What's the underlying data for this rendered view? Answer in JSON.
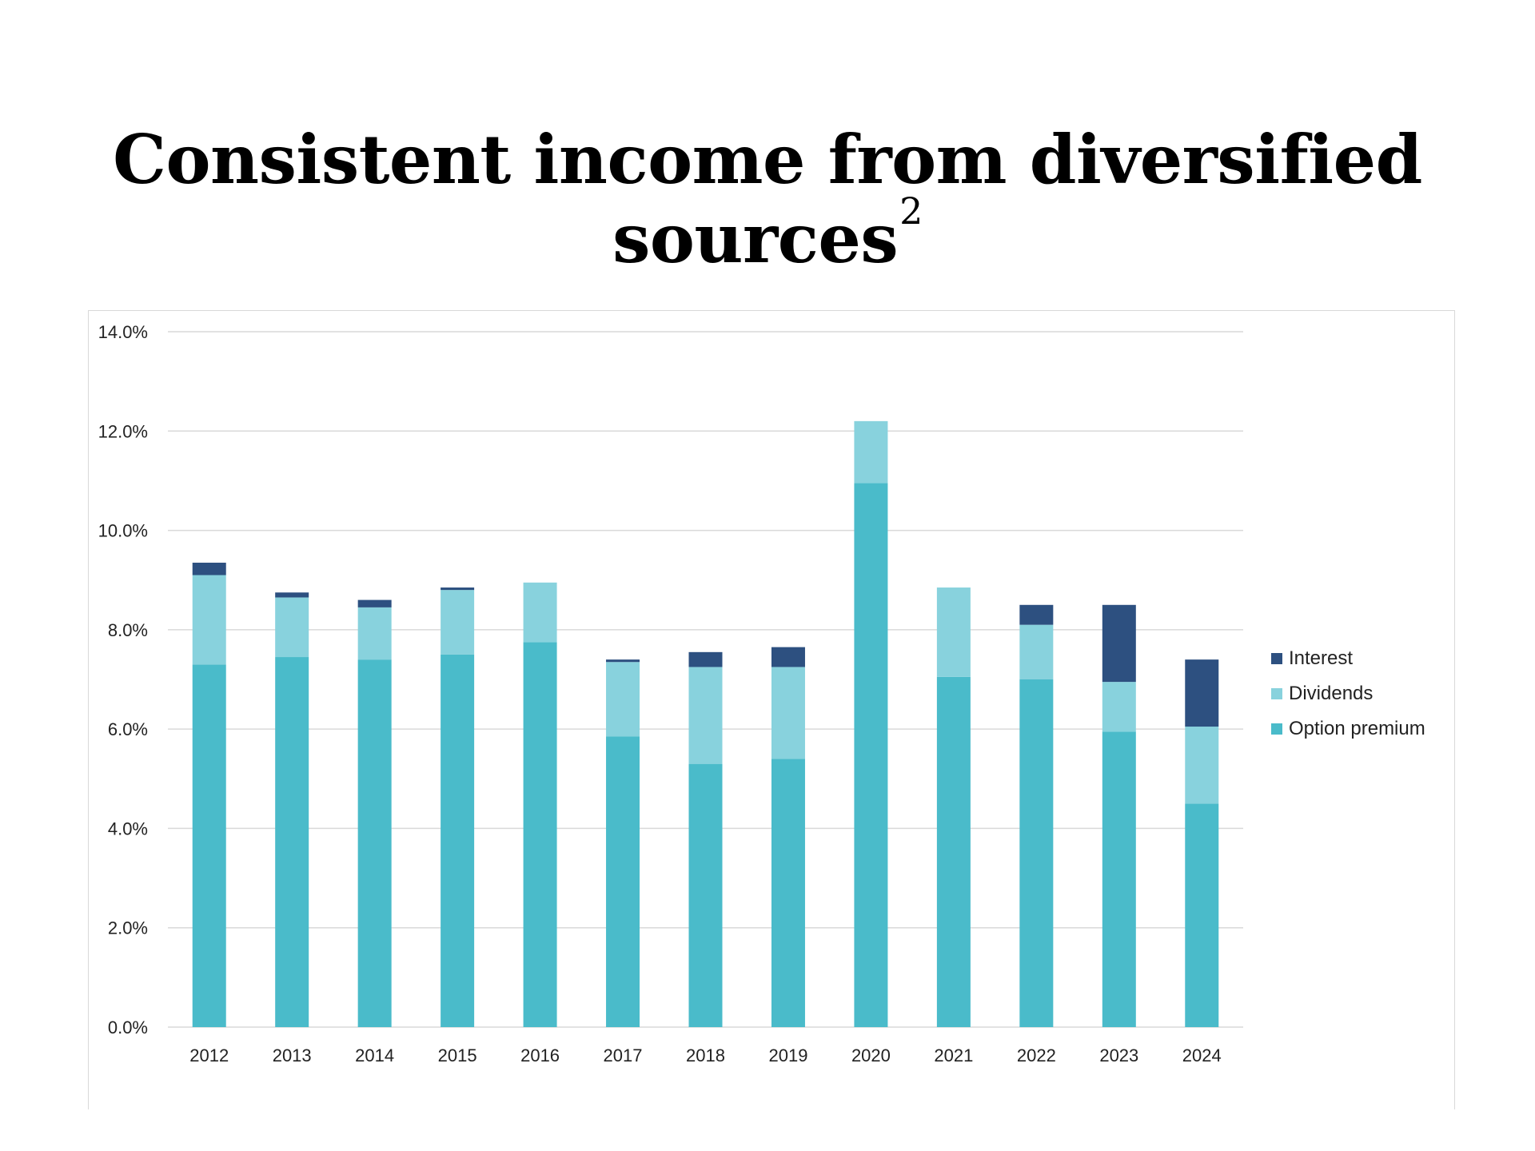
{
  "title": "Consistent income from diversified sources",
  "title_superscript": "2",
  "colors": {
    "interest": "#2d5080",
    "dividends": "#88d2dd",
    "option_premium": "#4abbca",
    "grid": "#d9d9d9"
  },
  "chart_data": {
    "type": "bar",
    "stacked": true,
    "categories": [
      "2012",
      "2013",
      "2014",
      "2015",
      "2016",
      "2017",
      "2018",
      "2019",
      "2020",
      "2021",
      "2022",
      "2023",
      "2024"
    ],
    "series": [
      {
        "name": "Option premium",
        "values": [
          7.3,
          7.45,
          7.4,
          7.5,
          7.75,
          5.85,
          5.3,
          5.4,
          10.95,
          7.05,
          7.0,
          5.95,
          4.5
        ]
      },
      {
        "name": "Dividends",
        "values": [
          1.8,
          1.2,
          1.05,
          1.3,
          1.2,
          1.5,
          1.95,
          1.85,
          1.25,
          1.8,
          1.1,
          1.0,
          1.55
        ]
      },
      {
        "name": "Interest",
        "values": [
          0.25,
          0.1,
          0.15,
          0.05,
          0.0,
          0.05,
          0.3,
          0.4,
          0.0,
          0.0,
          0.4,
          1.55,
          1.35
        ]
      }
    ],
    "ylim": [
      0,
      14
    ],
    "y_ticks": [
      "0.0%",
      "2.0%",
      "4.0%",
      "6.0%",
      "8.0%",
      "10.0%",
      "12.0%",
      "14.0%"
    ],
    "y_tick_values": [
      0,
      2,
      4,
      6,
      8,
      10,
      12,
      14
    ],
    "grid": true,
    "legend": {
      "placement": "right",
      "entries": [
        "Interest",
        "Dividends",
        "Option premium"
      ]
    },
    "xlabel": "",
    "ylabel": ""
  }
}
